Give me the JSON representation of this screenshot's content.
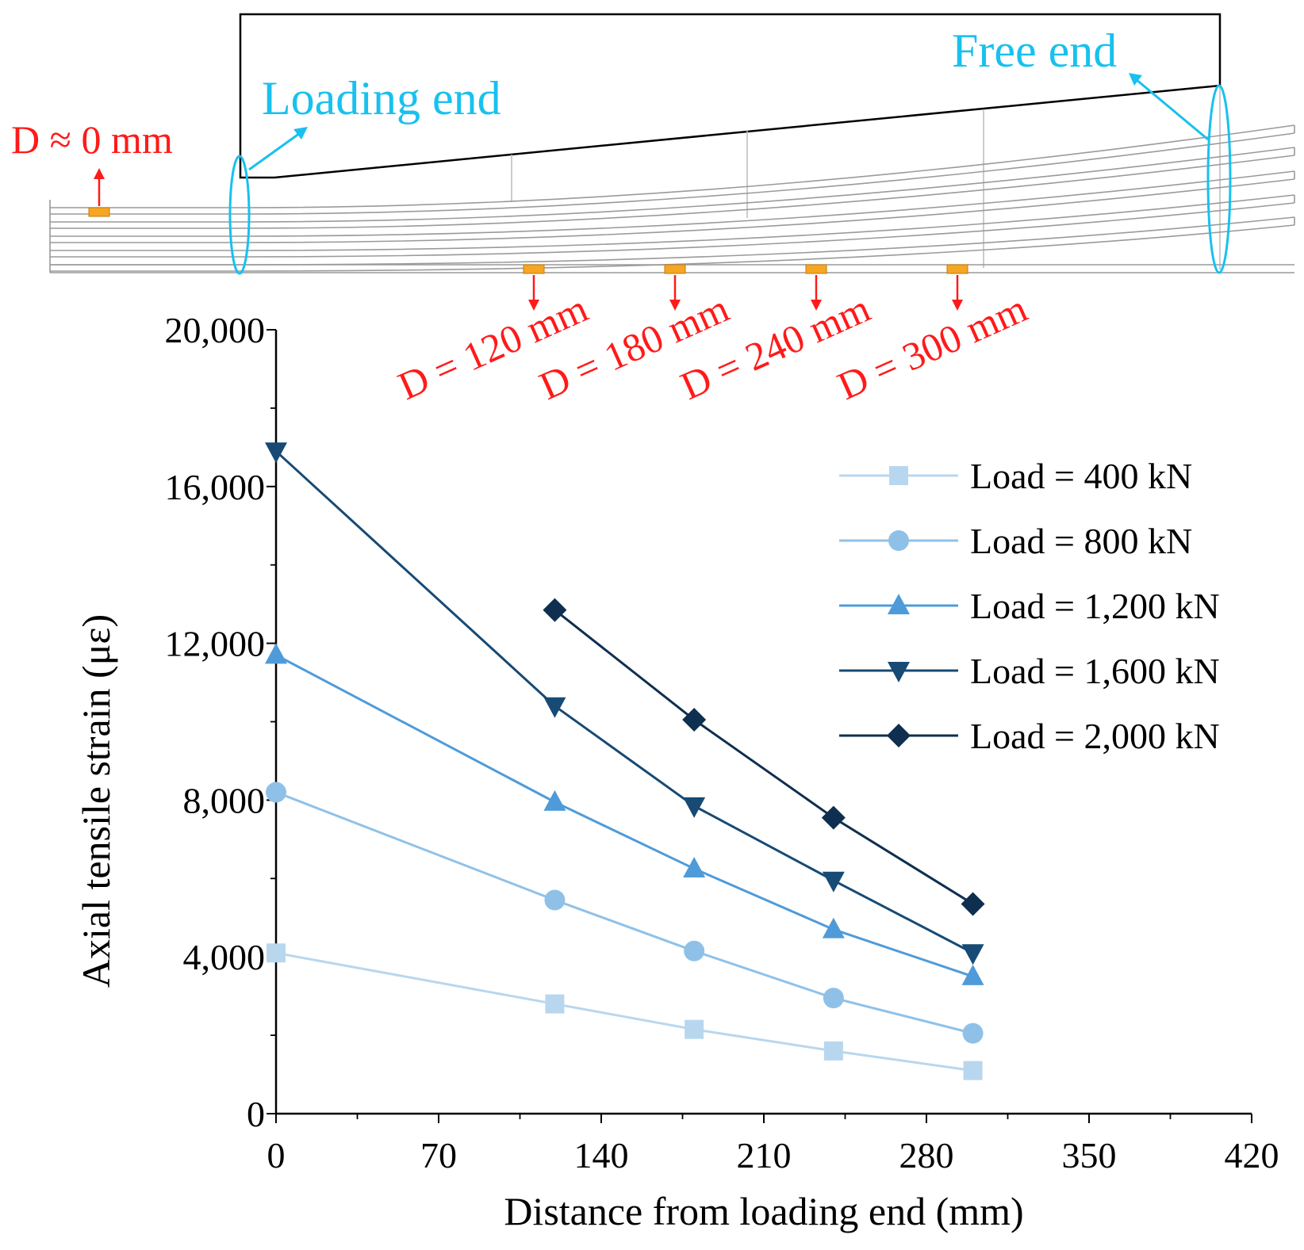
{
  "colors": {
    "load400": "#b8d7ef",
    "load800": "#8fc1e8",
    "load1200": "#4f9bd9",
    "load1600": "#174a74",
    "load2000": "#0e2f4f",
    "annotation_red": "#ff1a1a",
    "annotation_cyan": "#18c1ee",
    "gauge_orange": "#f5a623"
  },
  "schematic": {
    "loading_end_label": "Loading end",
    "free_end_label": "Free end",
    "gauge_labels": [
      "D ≈ 0 mm",
      "D = 120 mm",
      "D = 180 mm",
      "D = 240 mm",
      "D = 300 mm"
    ]
  },
  "chart_data": {
    "type": "line",
    "title": "",
    "xlabel": "Distance from loading end (mm)",
    "ylabel": "Axial tensile strain (με)",
    "xlim": [
      0,
      420
    ],
    "ylim": [
      0,
      20000
    ],
    "xticks": [
      0,
      70,
      140,
      210,
      280,
      350,
      420
    ],
    "xtick_labels": [
      "0",
      "70",
      "140",
      "210",
      "280",
      "350",
      "420"
    ],
    "yticks": [
      0,
      4000,
      8000,
      12000,
      16000,
      20000
    ],
    "ytick_labels": [
      "0",
      "4,000",
      "8,000",
      "12,000",
      "16,000",
      "20,000"
    ],
    "legend_position": "top-right",
    "series": [
      {
        "name": "Load = 400 kN",
        "marker": "square",
        "color_key": "load400",
        "x": [
          0,
          120,
          180,
          240,
          300
        ],
        "values": [
          4100,
          2800,
          2150,
          1600,
          1100
        ]
      },
      {
        "name": "Load = 800 kN",
        "marker": "circle",
        "color_key": "load800",
        "x": [
          0,
          120,
          180,
          240,
          300
        ],
        "values": [
          8200,
          5450,
          4150,
          2950,
          2050
        ]
      },
      {
        "name": "Load = 1,200 kN",
        "marker": "triangle-up",
        "color_key": "load1200",
        "x": [
          0,
          120,
          180,
          240,
          300
        ],
        "values": [
          11700,
          7950,
          6250,
          4700,
          3500
        ]
      },
      {
        "name": "Load = 1,600 kN",
        "marker": "triangle-down",
        "color_key": "load1600",
        "x": [
          0,
          120,
          180,
          240,
          300
        ],
        "values": [
          16900,
          10400,
          7850,
          5950,
          4100
        ]
      },
      {
        "name": "Load = 2,000 kN",
        "marker": "diamond",
        "color_key": "load2000",
        "x": [
          120,
          180,
          240,
          300
        ],
        "values": [
          12850,
          10050,
          7550,
          5350
        ]
      }
    ]
  }
}
